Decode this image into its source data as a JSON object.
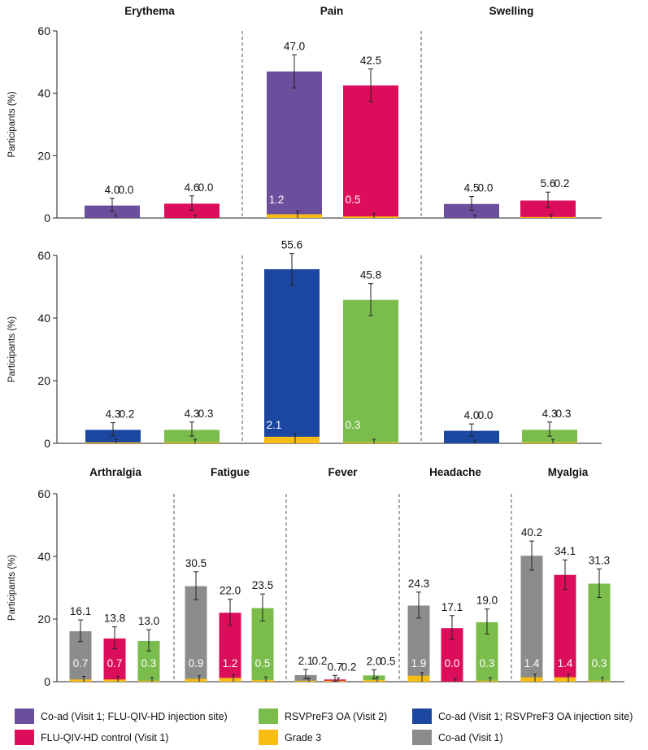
{
  "colors": {
    "purple": "#6b4e9c",
    "crimson": "#dc0d5a",
    "green": "#7bbd4c",
    "blue": "#1c47a0",
    "gray": "#8c8c8c",
    "gold": "#f7bd14"
  },
  "chart_data": [
    {
      "type": "bar",
      "id": "local-coad-flu-site",
      "ylabel": "Participants (%)",
      "ylim": [
        0,
        60
      ],
      "yticks": [
        0,
        20,
        40,
        60
      ],
      "groups": [
        {
          "title": "Erythema",
          "bars": [
            {
              "series": "Co-ad (Visit 1; FLU-QIV-HD injection site)",
              "color": "purple",
              "value": 4.0,
              "label": "4.0",
              "grade3": 0.0,
              "grade3_label": "0.0",
              "ci": [
                2.1,
                6.3
              ]
            },
            {
              "series": "FLU-QIV-HD control (Visit 1)",
              "color": "crimson",
              "value": 4.6,
              "label": "4.6",
              "grade3": 0.0,
              "grade3_label": "0.0",
              "ci": [
                2.5,
                7.1
              ]
            }
          ]
        },
        {
          "title": "Pain",
          "bars": [
            {
              "series": "Co-ad (Visit 1; FLU-QIV-HD injection site)",
              "color": "purple",
              "value": 47.0,
              "label": "47.0",
              "grade3": 1.2,
              "grade3_label": "1.2",
              "ci": [
                41.7,
                52.3
              ]
            },
            {
              "series": "FLU-QIV-HD control (Visit 1)",
              "color": "crimson",
              "value": 42.5,
              "label": "42.5",
              "grade3": 0.5,
              "grade3_label": "0.5",
              "ci": [
                37.3,
                47.8
              ]
            }
          ]
        },
        {
          "title": "Swelling",
          "bars": [
            {
              "series": "Co-ad (Visit 1; FLU-QIV-HD injection site)",
              "color": "purple",
              "value": 4.5,
              "label": "4.5",
              "grade3": 0.0,
              "grade3_label": "0.0",
              "ci": [
                2.5,
                6.9
              ]
            },
            {
              "series": "FLU-QIV-HD control (Visit 1)",
              "color": "crimson",
              "value": 5.6,
              "label": "5.6",
              "grade3": 0.2,
              "grade3_label": "0.2",
              "ci": [
                3.4,
                8.3
              ]
            }
          ]
        }
      ]
    },
    {
      "type": "bar",
      "id": "local-coad-rsv-site",
      "ylabel": "Participants (%)",
      "ylim": [
        0,
        60
      ],
      "yticks": [
        0,
        20,
        40,
        60
      ],
      "groups": [
        {
          "title": "",
          "bars": [
            {
              "series": "Co-ad (Visit 1; RSVPreF3 OA injection site)",
              "color": "blue",
              "value": 4.3,
              "label": "4.3",
              "grade3": 0.2,
              "grade3_label": "0.2",
              "ci": [
                2.4,
                6.6
              ]
            },
            {
              "series": "RSVPreF3 OA (Visit 2)",
              "color": "green",
              "value": 4.3,
              "label": "4.3",
              "grade3": 0.3,
              "grade3_label": "0.3",
              "ci": [
                2.3,
                6.8
              ]
            }
          ]
        },
        {
          "title": "",
          "bars": [
            {
              "series": "Co-ad (Visit 1; RSVPreF3 OA injection site)",
              "color": "blue",
              "value": 55.6,
              "label": "55.6",
              "grade3": 2.1,
              "grade3_label": "2.1",
              "ci": [
                50.5,
                60.6
              ]
            },
            {
              "series": "RSVPreF3 OA (Visit 2)",
              "color": "green",
              "value": 45.8,
              "label": "45.8",
              "grade3": 0.3,
              "grade3_label": "0.3",
              "ci": [
                40.8,
                51.0
              ]
            }
          ]
        },
        {
          "title": "",
          "bars": [
            {
              "series": "Co-ad (Visit 1; RSVPreF3 OA injection site)",
              "color": "blue",
              "value": 4.0,
              "label": "4.0",
              "grade3": 0.0,
              "grade3_label": "0.0",
              "ci": [
                2.2,
                6.2
              ]
            },
            {
              "series": "RSVPreF3 OA (Visit 2)",
              "color": "green",
              "value": 4.3,
              "label": "4.3",
              "grade3": 0.3,
              "grade3_label": "0.3",
              "ci": [
                2.3,
                6.8
              ]
            }
          ]
        }
      ]
    },
    {
      "type": "bar",
      "id": "systemic",
      "ylabel": "Participants (%)",
      "ylim": [
        0,
        60
      ],
      "yticks": [
        0,
        20,
        40,
        60
      ],
      "groups": [
        {
          "title": "Arthralgia",
          "bars": [
            {
              "series": "Co-ad (Visit 1)",
              "color": "gray",
              "value": 16.1,
              "label": "16.1",
              "grade3": 0.7,
              "grade3_label": "0.7",
              "ci": [
                12.8,
                19.7
              ]
            },
            {
              "series": "FLU-QIV-HD control (Visit 1)",
              "color": "crimson",
              "value": 13.8,
              "label": "13.8",
              "grade3": 0.7,
              "grade3_label": "0.7",
              "ci": [
                10.5,
                17.5
              ]
            },
            {
              "series": "RSVPreF3 OA (Visit 2)",
              "color": "green",
              "value": 13.0,
              "label": "13.0",
              "grade3": 0.3,
              "grade3_label": "0.3",
              "ci": [
                9.8,
                16.6
              ]
            }
          ]
        },
        {
          "title": "Fatigue",
          "bars": [
            {
              "series": "Co-ad (Visit 1)",
              "color": "gray",
              "value": 30.5,
              "label": "30.5",
              "grade3": 0.9,
              "grade3_label": "0.9",
              "ci": [
                26.2,
                35.1
              ]
            },
            {
              "series": "FLU-QIV-HD control (Visit 1)",
              "color": "crimson",
              "value": 22.0,
              "label": "22.0",
              "grade3": 1.2,
              "grade3_label": "1.2",
              "ci": [
                18.0,
                26.3
              ]
            },
            {
              "series": "RSVPreF3 OA (Visit 2)",
              "color": "green",
              "value": 23.5,
              "label": "23.5",
              "grade3": 0.5,
              "grade3_label": "0.5",
              "ci": [
                19.4,
                28.0
              ]
            }
          ]
        },
        {
          "title": "Fever",
          "bars": [
            {
              "series": "Co-ad (Visit 1)",
              "color": "gray",
              "value": 2.1,
              "label": "2.1",
              "grade3": 0.2,
              "grade3_label": "0.2",
              "ci": [
                0.9,
                3.9
              ]
            },
            {
              "series": "FLU-QIV-HD control (Visit 1)",
              "color": "crimson",
              "value": 0.7,
              "label": "0.7",
              "grade3": 0.2,
              "grade3_label": "0.2",
              "ci": [
                0.1,
                2.0
              ]
            },
            {
              "series": "RSVPreF3 OA (Visit 2)",
              "color": "green",
              "value": 2.0,
              "label": "2.0",
              "grade3": 0.5,
              "grade3_label": "0.5",
              "ci": [
                0.9,
                3.8
              ]
            }
          ]
        },
        {
          "title": "Headache",
          "bars": [
            {
              "series": "Co-ad (Visit 1)",
              "color": "gray",
              "value": 24.3,
              "label": "24.3",
              "grade3": 1.9,
              "grade3_label": "1.9",
              "ci": [
                20.3,
                28.6
              ]
            },
            {
              "series": "FLU-QIV-HD control (Visit 1)",
              "color": "crimson",
              "value": 17.1,
              "label": "17.1",
              "grade3": 0.0,
              "grade3_label": "0.0",
              "ci": [
                13.5,
                21.1
              ]
            },
            {
              "series": "RSVPreF3 OA (Visit 2)",
              "color": "green",
              "value": 19.0,
              "label": "19.0",
              "grade3": 0.3,
              "grade3_label": "0.3",
              "ci": [
                15.2,
                23.2
              ]
            }
          ]
        },
        {
          "title": "Myalgia",
          "bars": [
            {
              "series": "Co-ad (Visit 1)",
              "color": "gray",
              "value": 40.2,
              "label": "40.2",
              "grade3": 1.4,
              "grade3_label": "1.4",
              "ci": [
                35.6,
                44.9
              ]
            },
            {
              "series": "FLU-QIV-HD control (Visit 1)",
              "color": "crimson",
              "value": 34.1,
              "label": "34.1",
              "grade3": 1.4,
              "grade3_label": "1.4",
              "ci": [
                29.5,
                38.9
              ]
            },
            {
              "series": "RSVPreF3 OA (Visit 2)",
              "color": "green",
              "value": 31.3,
              "label": "31.3",
              "grade3": 0.3,
              "grade3_label": "0.3",
              "ci": [
                26.9,
                36.0
              ]
            }
          ]
        }
      ]
    }
  ],
  "legend": [
    {
      "label": "Co-ad (Visit 1; FLU-QIV-HD injection site)",
      "color": "purple"
    },
    {
      "label": "RSVPreF3 OA (Visit 2)",
      "color": "green"
    },
    {
      "label": "Co-ad (Visit 1; RSVPreF3 OA injection site)",
      "color": "blue"
    },
    {
      "label": "FLU-QIV-HD control (Visit 1)",
      "color": "crimson"
    },
    {
      "label": "Grade 3",
      "color": "gold"
    },
    {
      "label": "Co-ad (Visit 1)",
      "color": "gray"
    }
  ]
}
